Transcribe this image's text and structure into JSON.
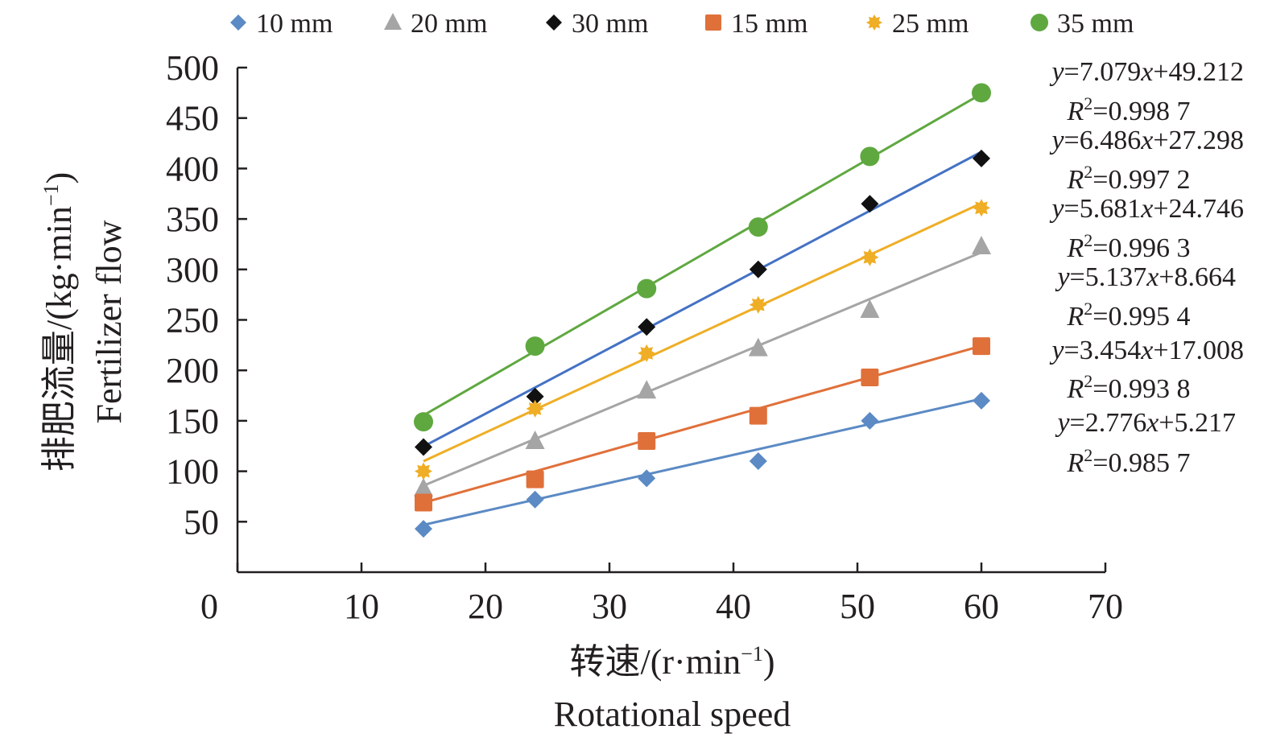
{
  "chart_data": {
    "type": "scatter",
    "title": "",
    "x": [
      15,
      24,
      33,
      42,
      51,
      60
    ],
    "xlim": [
      0,
      70
    ],
    "ylim": [
      0,
      500
    ],
    "xticks": [
      0,
      10,
      20,
      30,
      40,
      50,
      60,
      70
    ],
    "yticks": [
      50,
      100,
      150,
      200,
      250,
      300,
      350,
      400,
      450,
      500
    ],
    "xlabel_cn": "转速/(r·min",
    "xlabel_en": "Rotational speed",
    "ylabel_cn": "排肥流量/(kg·min",
    "ylabel_en": "Fertilizer flow",
    "unit_sup": "−1",
    "unit_close": ")",
    "legend_position": "top",
    "series": [
      {
        "name": "10 mm",
        "marker": "diamond",
        "color": "#5b8ac4",
        "values": [
          43,
          72,
          93,
          110,
          150,
          170
        ],
        "fit": {
          "slope": 2.776,
          "intercept": 5.217
        },
        "eq": {
          "y": "y",
          "eq1": "=2.776",
          "x": "x",
          "eq2": "+5.217",
          "r": "R",
          "sq": "2",
          "r2": "=0.985 7"
        }
      },
      {
        "name": "20 mm",
        "marker": "triangle",
        "color": "#a5a5a5",
        "values": [
          83,
          130,
          180,
          222,
          260,
          323
        ],
        "fit": {
          "slope": 5.137,
          "intercept": 8.664
        },
        "eq": {
          "y": "y",
          "eq1": "=5.137",
          "x": "x",
          "eq2": "+8.664",
          "r": "R",
          "sq": "2",
          "r2": "=0.995 4"
        }
      },
      {
        "name": "30 mm",
        "marker": "diamond",
        "color": "#111111",
        "values": [
          124,
          174,
          243,
          300,
          365,
          410
        ],
        "fit": {
          "slope": 6.486,
          "intercept": 27.298
        },
        "eq": {
          "y": "y",
          "eq1": "=6.486",
          "x": "x",
          "eq2": "+27.298",
          "r": "R",
          "sq": "2",
          "r2": "=0.997 2"
        }
      },
      {
        "name": "15 mm",
        "marker": "square",
        "color": "#e0703a",
        "values": [
          69,
          92,
          130,
          155,
          193,
          224
        ],
        "fit": {
          "slope": 3.454,
          "intercept": 17.008
        },
        "eq": {
          "y": "y",
          "eq1": "=3.454",
          "x": "x",
          "eq2": "+17.008",
          "r": "R",
          "sq": "2",
          "r2": "=0.993 8"
        }
      },
      {
        "name": "25 mm",
        "marker": "star",
        "color": "#efae25",
        "values": [
          100,
          162,
          217,
          265,
          312,
          361
        ],
        "fit": {
          "slope": 5.681,
          "intercept": 24.746
        },
        "eq": {
          "y": "y",
          "eq1": "=5.681",
          "x": "x",
          "eq2": "+24.746",
          "r": "R",
          "sq": "2",
          "r2": "=0.996 3"
        }
      },
      {
        "name": "35 mm",
        "marker": "circle",
        "color": "#5fa840",
        "values": [
          149,
          224,
          281,
          342,
          412,
          475
        ],
        "fit": {
          "slope": 7.079,
          "intercept": 49.212
        },
        "eq": {
          "y": "y",
          "eq1": "=7.079",
          "x": "x",
          "eq2": "+49.212",
          "r": "R",
          "sq": "2",
          "r2": "=0.998 7"
        }
      }
    ]
  }
}
